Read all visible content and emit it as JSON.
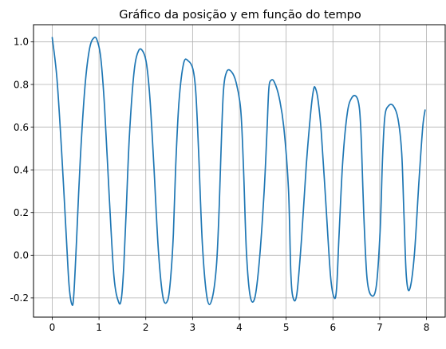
{
  "chart_data": {
    "type": "line",
    "title": "Gráfico da posição y em função do tempo",
    "xlabel": "",
    "ylabel": "",
    "xlim": [
      -0.4,
      8.4
    ],
    "ylim": [
      -0.29,
      1.08
    ],
    "grid": true,
    "x_ticks": [
      0,
      1,
      2,
      3,
      4,
      5,
      6,
      7,
      8
    ],
    "y_ticks": [
      -0.2,
      0.0,
      0.2,
      0.4,
      0.6,
      0.8,
      1.0
    ],
    "x_tick_labels": [
      "0",
      "1",
      "2",
      "3",
      "4",
      "5",
      "6",
      "7",
      "8"
    ],
    "y_tick_labels": [
      "-0.2",
      "0.0",
      "0.2",
      "0.4",
      "0.6",
      "0.8",
      "1.0"
    ],
    "series": [
      {
        "color": "#1f77b4",
        "x": [
          0.0,
          0.1,
          0.2,
          0.3,
          0.36,
          0.42,
          0.46,
          0.52,
          0.6,
          0.7,
          0.8,
          0.9,
          0.97,
          1.04,
          1.12,
          1.22,
          1.32,
          1.42,
          1.48,
          1.53,
          1.58,
          1.65,
          1.75,
          1.85,
          1.95,
          2.02,
          2.09,
          2.17,
          2.27,
          2.37,
          2.47,
          2.53,
          2.59,
          2.64,
          2.71,
          2.81,
          2.91,
          3.01,
          3.07,
          3.13,
          3.21,
          3.31,
          3.41,
          3.51,
          3.57,
          3.61,
          3.66,
          3.73,
          3.83,
          3.93,
          4.03,
          4.09,
          4.15,
          4.23,
          4.33,
          4.43,
          4.53,
          4.59,
          4.63,
          4.68,
          4.75,
          4.85,
          4.95,
          5.05,
          5.1,
          5.15,
          5.23,
          5.33,
          5.43,
          5.53,
          5.59,
          5.63,
          5.68,
          5.75,
          5.85,
          5.95,
          6.03,
          6.08,
          6.13,
          6.21,
          6.31,
          6.41,
          6.51,
          6.57,
          6.61,
          6.66,
          6.73,
          6.83,
          6.93,
          7.01,
          7.06,
          7.11,
          7.19,
          7.29,
          7.39,
          7.47,
          7.52,
          7.57,
          7.64,
          7.74,
          7.84,
          7.92,
          7.97
        ],
        "y": [
          1.02,
          0.83,
          0.49,
          0.09,
          -0.14,
          -0.23,
          -0.19,
          0.07,
          0.45,
          0.79,
          0.97,
          1.02,
          1.0,
          0.92,
          0.69,
          0.27,
          -0.1,
          -0.22,
          -0.2,
          -0.05,
          0.2,
          0.56,
          0.86,
          0.96,
          0.95,
          0.89,
          0.73,
          0.43,
          0.02,
          -0.2,
          -0.21,
          -0.11,
          0.1,
          0.42,
          0.72,
          0.9,
          0.91,
          0.87,
          0.76,
          0.48,
          0.05,
          -0.2,
          -0.21,
          -0.05,
          0.23,
          0.5,
          0.77,
          0.86,
          0.86,
          0.81,
          0.68,
          0.4,
          0.02,
          -0.19,
          -0.2,
          -0.02,
          0.3,
          0.58,
          0.78,
          0.82,
          0.81,
          0.74,
          0.6,
          0.31,
          -0.08,
          -0.2,
          -0.18,
          0.08,
          0.42,
          0.68,
          0.78,
          0.78,
          0.73,
          0.58,
          0.24,
          -0.1,
          -0.2,
          -0.15,
          0.09,
          0.44,
          0.67,
          0.74,
          0.74,
          0.68,
          0.52,
          0.19,
          -0.11,
          -0.19,
          -0.14,
          0.12,
          0.45,
          0.65,
          0.7,
          0.7,
          0.64,
          0.48,
          0.18,
          -0.1,
          -0.16,
          0.0,
          0.35,
          0.6,
          0.68
        ]
      }
    ]
  }
}
